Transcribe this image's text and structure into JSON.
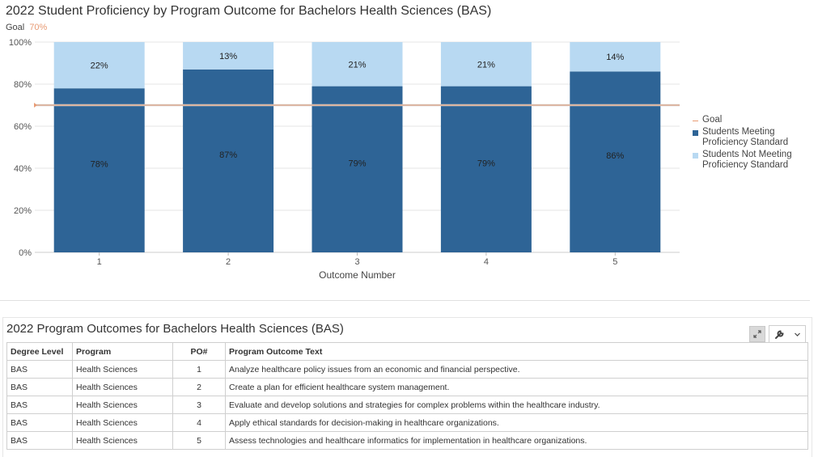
{
  "chart": {
    "title": "2022 Student Proficiency by Program Outcome for Bachelors Health Sciences (BAS)",
    "goal_label": "Goal",
    "goal_value": "70%",
    "legend": {
      "goal": "Goal",
      "meeting": "Students Meeting Proficiency Standard",
      "not_meeting": "Students Not Meeting Proficiency Standard"
    },
    "colors": {
      "meeting": "#2e6496",
      "not_meeting": "#b8d9f2",
      "goal_line": "#e89b74",
      "grid": "#e5e5e5"
    }
  },
  "chart_data": {
    "type": "bar",
    "stacked": true,
    "title": "2022 Student Proficiency by Program Outcome for Bachelors Health Sciences (BAS)",
    "xlabel": "Outcome Number",
    "ylabel": "",
    "categories": [
      "1",
      "2",
      "3",
      "4",
      "5"
    ],
    "ylim": [
      0,
      100
    ],
    "yticks": [
      "0%",
      "20%",
      "40%",
      "60%",
      "80%",
      "100%"
    ],
    "series": [
      {
        "name": "Students Meeting Proficiency Standard",
        "values": [
          78,
          87,
          79,
          79,
          86
        ],
        "labels": [
          "78%",
          "87%",
          "79%",
          "79%",
          "86%"
        ]
      },
      {
        "name": "Students Not Meeting Proficiency Standard",
        "values": [
          22,
          13,
          21,
          21,
          14
        ],
        "labels": [
          "22%",
          "13%",
          "21%",
          "21%",
          "14%"
        ]
      }
    ],
    "goal": 70,
    "goal_name": "Goal",
    "grid": true,
    "legend_position": "right"
  },
  "table": {
    "title": "2022 Program Outcomes for Bachelors Health Sciences (BAS)",
    "columns": [
      "Degree Level",
      "Program",
      "PO#",
      "Program Outcome Text"
    ],
    "rows": [
      [
        "BAS",
        "Health Sciences",
        "1",
        "Analyze healthcare policy issues from an economic and financial perspective."
      ],
      [
        "BAS",
        "Health Sciences",
        "2",
        "Create a plan for efficient healthcare system management."
      ],
      [
        "BAS",
        "Health Sciences",
        "3",
        "Evaluate and develop solutions and strategies for complex problems within the healthcare industry."
      ],
      [
        "BAS",
        "Health Sciences",
        "4",
        "Apply ethical standards for decision-making in healthcare organizations."
      ],
      [
        "BAS",
        "Health Sciences",
        "5",
        "Assess technologies and healthcare informatics for implementation in healthcare organizations."
      ]
    ],
    "tools": {
      "expand_icon": "expand-icon",
      "wrench_icon": "wrench-icon",
      "chevron_icon": "chevron-down-icon"
    }
  }
}
